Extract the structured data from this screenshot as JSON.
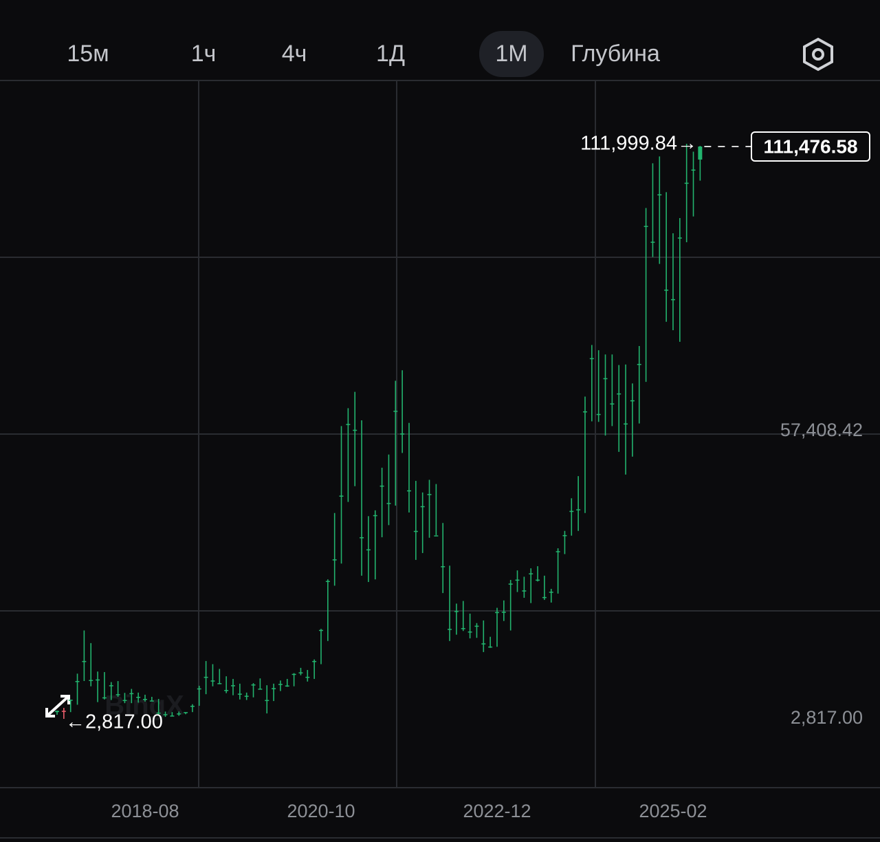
{
  "toolbar": {
    "tabs": [
      "15м",
      "1ч",
      "4ч",
      "1Д",
      "1М",
      "Глубина"
    ],
    "active": 4
  },
  "chart_data": {
    "type": "candlestick",
    "watermark": "BingX",
    "up_color": "#22b46e",
    "down_color": "#ef5f6d",
    "categories": [
      null,
      null,
      null,
      null,
      null,
      null,
      null,
      null,
      null,
      null,
      null,
      null,
      null,
      "2018-08",
      null,
      null,
      null,
      null,
      null,
      null,
      null,
      null,
      null,
      null,
      null,
      null,
      null,
      null,
      null,
      null,
      null,
      null,
      null,
      null,
      null,
      null,
      null,
      null,
      null,
      "2020-10",
      null,
      null,
      null,
      null,
      null,
      null,
      null,
      null,
      null,
      null,
      null,
      null,
      null,
      null,
      null,
      null,
      null,
      null,
      null,
      null,
      null,
      null,
      null,
      null,
      null,
      "2022-12",
      null,
      null,
      null,
      null,
      null,
      null,
      null,
      null,
      null,
      null,
      null,
      null,
      null,
      null,
      null,
      null,
      null,
      null,
      null,
      null,
      null,
      null,
      null,
      null,
      null,
      "2025-02",
      null,
      null,
      null,
      null
    ],
    "open": [
      4100,
      4340,
      6450,
      10000,
      13800,
      10200,
      10300,
      6900,
      9200,
      7500,
      6400,
      7700,
      7000,
      6600,
      6300,
      4000,
      3700,
      3450,
      3850,
      4100,
      5300,
      8600,
      10800,
      10100,
      9600,
      8300,
      9200,
      7600,
      7200,
      9350,
      8550,
      6400,
      8650,
      9450,
      9150,
      11350,
      11650,
      10800,
      13800,
      19700,
      29000,
      33100,
      45200,
      58800,
      57700,
      37300,
      35000,
      41500,
      47100,
      43800,
      61300,
      57000,
      46200,
      38500,
      43200,
      45500,
      37650,
      31800,
      19900,
      23300,
      20050,
      19400,
      20500,
      17150,
      16550,
      23100,
      23150,
      28500,
      29250,
      27200,
      30450,
      29250,
      25950,
      26950,
      34650,
      37700,
      42300,
      42600,
      61200,
      71300,
      60700,
      67500,
      62700,
      64600,
      58900,
      63300,
      70200,
      96400,
      93400,
      102400,
      84300,
      82500,
      94200,
      104600,
      107100,
      109000
    ],
    "high": [
      4400,
      4900,
      6450,
      11400,
      19600,
      17200,
      11800,
      11700,
      9800,
      9990,
      7750,
      8500,
      7800,
      7400,
      7000,
      6600,
      4200,
      4100,
      4200,
      4100,
      5600,
      9100,
      13800,
      13200,
      12300,
      10900,
      10400,
      9500,
      7800,
      9600,
      10500,
      9200,
      9500,
      10100,
      10400,
      11500,
      12500,
      12100,
      14100,
      19900,
      29300,
      41900,
      58400,
      61800,
      64900,
      59500,
      41300,
      42400,
      50500,
      53000,
      67000,
      69000,
      59000,
      48000,
      45800,
      48200,
      47400,
      40000,
      31900,
      24700,
      25200,
      22800,
      21000,
      21500,
      18400,
      23900,
      25300,
      29200,
      31000,
      29800,
      31400,
      31800,
      30000,
      27500,
      35200,
      38500,
      44700,
      48900,
      64000,
      73800,
      72800,
      72000,
      72000,
      70000,
      70100,
      66500,
      73600,
      99800,
      108300,
      109600,
      102800,
      95000,
      97900,
      111999.84,
      110500,
      111600
    ],
    "low": [
      3600,
      2817,
      4100,
      5500,
      10000,
      9000,
      6000,
      6500,
      6400,
      7000,
      5800,
      5800,
      5900,
      6100,
      6200,
      3500,
      3200,
      3350,
      3400,
      3700,
      4100,
      5300,
      7500,
      9000,
      9400,
      7700,
      7300,
      6500,
      6400,
      6900,
      8450,
      3850,
      6200,
      8100,
      8900,
      9000,
      11100,
      9900,
      10400,
      13200,
      17600,
      28100,
      32300,
      44000,
      47000,
      30000,
      28800,
      29300,
      37300,
      39600,
      43300,
      53300,
      42000,
      33000,
      34300,
      37200,
      37700,
      26700,
      17600,
      18800,
      19500,
      18100,
      18200,
      15500,
      16300,
      16500,
      21400,
      19600,
      26900,
      25800,
      24800,
      28900,
      25400,
      24900,
      26600,
      34100,
      37600,
      38500,
      41900,
      59300,
      59200,
      56600,
      58400,
      53500,
      49200,
      52600,
      58900,
      66800,
      90500,
      89200,
      78200,
      76600,
      74400,
      93300,
      98200,
      105000
    ],
    "close": [
      4340,
      4300,
      6450,
      10000,
      13800,
      10200,
      10300,
      6900,
      9200,
      7500,
      6400,
      7700,
      7000,
      6600,
      6300,
      4000,
      3700,
      3450,
      3850,
      4100,
      5300,
      8600,
      10800,
      10100,
      9600,
      8300,
      9200,
      7600,
      7200,
      9350,
      8550,
      6400,
      8650,
      9450,
      9150,
      11350,
      11650,
      10800,
      13800,
      19700,
      29000,
      33100,
      45200,
      58800,
      57700,
      37300,
      35000,
      41500,
      47100,
      43800,
      61300,
      57000,
      46200,
      38500,
      43200,
      45500,
      37650,
      31800,
      19900,
      23300,
      20050,
      19400,
      20500,
      17150,
      16550,
      23100,
      23150,
      28500,
      29250,
      27200,
      30450,
      29250,
      25950,
      26950,
      34650,
      37700,
      42300,
      42600,
      61200,
      71300,
      60700,
      67500,
      62700,
      64600,
      58900,
      63300,
      70200,
      96400,
      93400,
      102400,
      84300,
      82500,
      94200,
      104600,
      107100,
      111476.58
    ],
    "ylim": [
      -10243,
      124014
    ],
    "yticks": [
      {
        "value": 57408.42,
        "label": "57,408.42"
      },
      {
        "value": 2817,
        "label": "2,817.00"
      }
    ],
    "last_price": {
      "value": 111476.58,
      "label": "111,476.58"
    },
    "high_annotation": {
      "value": 111999.84,
      "label": "111,999.84→"
    },
    "low_annotation": {
      "value": 2817,
      "label": "←2,817.00"
    }
  }
}
